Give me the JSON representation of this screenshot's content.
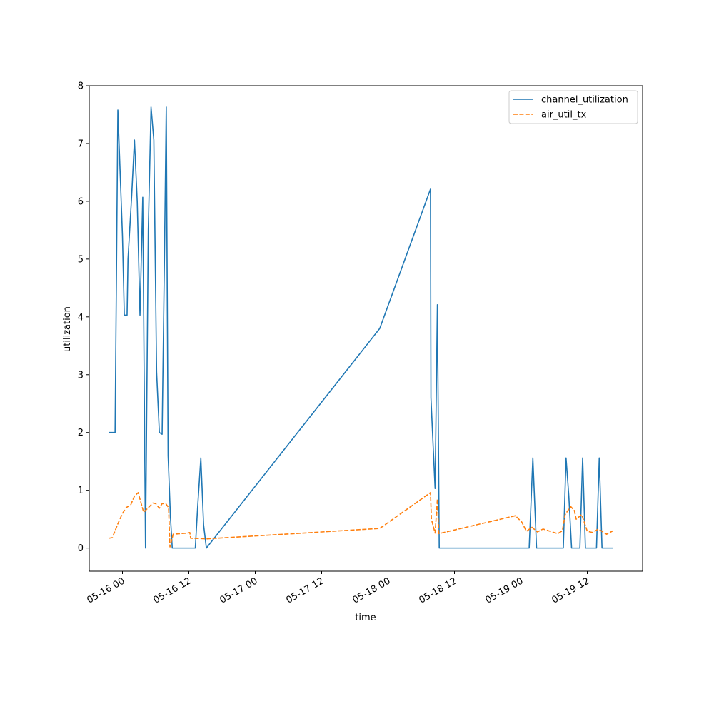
{
  "chart_data": {
    "type": "line",
    "title": "",
    "xlabel": "time",
    "ylabel": "utilization",
    "xlim": [
      "2025-05-15 18:00",
      "2025-05-19 22:00"
    ],
    "ylim": [
      -0.4,
      8
    ],
    "x_ticks": [
      {
        "x": "2025-05-16 00:00",
        "label": "05-16 00"
      },
      {
        "x": "2025-05-16 12:00",
        "label": "05-16 12"
      },
      {
        "x": "2025-05-17 00:00",
        "label": "05-17 00"
      },
      {
        "x": "2025-05-17 12:00",
        "label": "05-17 12"
      },
      {
        "x": "2025-05-18 00:00",
        "label": "05-18 00"
      },
      {
        "x": "2025-05-18 12:00",
        "label": "05-18 12"
      },
      {
        "x": "2025-05-19 00:00",
        "label": "05-19 00"
      },
      {
        "x": "2025-05-19 12:00",
        "label": "05-19 12"
      }
    ],
    "y_ticks": [
      0,
      1,
      2,
      3,
      4,
      5,
      6,
      7,
      8
    ],
    "grid": false,
    "legend_position": "top-right",
    "series": [
      {
        "name": "channel_utilization",
        "color": "#1f77b4",
        "style": "solid",
        "points": [
          [
            "2025-05-15 21:30",
            2.0
          ],
          [
            "2025-05-15 22:40",
            2.0
          ],
          [
            "2025-05-15 23:10",
            7.58
          ],
          [
            "2025-05-16 00:00",
            5.4
          ],
          [
            "2025-05-16 00:20",
            4.03
          ],
          [
            "2025-05-16 00:50",
            4.03
          ],
          [
            "2025-05-16 01:00",
            5.0
          ],
          [
            "2025-05-16 01:40",
            6.1
          ],
          [
            "2025-05-16 02:10",
            7.06
          ],
          [
            "2025-05-16 02:40",
            6.0
          ],
          [
            "2025-05-16 03:10",
            4.03
          ],
          [
            "2025-05-16 03:40",
            6.07
          ],
          [
            "2025-05-16 04:10",
            0.0
          ],
          [
            "2025-05-16 04:40",
            5.5
          ],
          [
            "2025-05-16 05:10",
            7.63
          ],
          [
            "2025-05-16 05:40",
            7.06
          ],
          [
            "2025-05-16 06:10",
            3.05
          ],
          [
            "2025-05-16 06:40",
            2.0
          ],
          [
            "2025-05-16 07:10",
            1.97
          ],
          [
            "2025-05-16 07:35",
            5.0
          ],
          [
            "2025-05-16 07:55",
            7.63
          ],
          [
            "2025-05-16 08:15",
            1.6
          ],
          [
            "2025-05-16 08:40",
            0.55
          ],
          [
            "2025-05-16 09:00",
            0.0
          ],
          [
            "2025-05-16 13:10",
            0.0
          ],
          [
            "2025-05-16 13:35",
            0.7
          ],
          [
            "2025-05-16 14:10",
            1.56
          ],
          [
            "2025-05-16 14:40",
            0.4
          ],
          [
            "2025-05-16 15:10",
            0.0
          ],
          [
            "2025-05-17 22:30",
            3.8
          ],
          [
            "2025-05-18 07:40",
            6.21
          ],
          [
            "2025-05-18 07:45",
            2.6
          ],
          [
            "2025-05-18 08:30",
            1.03
          ],
          [
            "2025-05-18 08:55",
            4.21
          ],
          [
            "2025-05-18 09:15",
            0.0
          ],
          [
            "2025-05-19 01:30",
            0.0
          ],
          [
            "2025-05-19 02:10",
            1.56
          ],
          [
            "2025-05-19 02:50",
            0.0
          ],
          [
            "2025-05-19 07:40",
            0.0
          ],
          [
            "2025-05-19 08:10",
            1.56
          ],
          [
            "2025-05-19 08:40",
            0.9
          ],
          [
            "2025-05-19 09:10",
            0.0
          ],
          [
            "2025-05-19 10:40",
            0.0
          ],
          [
            "2025-05-19 11:10",
            1.56
          ],
          [
            "2025-05-19 11:40",
            0.0
          ],
          [
            "2025-05-19 13:40",
            0.0
          ],
          [
            "2025-05-19 14:10",
            1.56
          ],
          [
            "2025-05-19 14:40",
            0.0
          ],
          [
            "2025-05-19 16:40",
            0.0
          ]
        ]
      },
      {
        "name": "air_util_tx",
        "color": "#ff7f0e",
        "style": "dashed",
        "points": [
          [
            "2025-05-15 21:30",
            0.17
          ],
          [
            "2025-05-15 22:10",
            0.18
          ],
          [
            "2025-05-15 23:10",
            0.42
          ],
          [
            "2025-05-16 00:00",
            0.6
          ],
          [
            "2025-05-16 00:40",
            0.7
          ],
          [
            "2025-05-16 01:30",
            0.75
          ],
          [
            "2025-05-16 02:10",
            0.9
          ],
          [
            "2025-05-16 02:50",
            0.96
          ],
          [
            "2025-05-16 03:20",
            0.79
          ],
          [
            "2025-05-16 03:50",
            0.62
          ],
          [
            "2025-05-16 04:40",
            0.7
          ],
          [
            "2025-05-16 05:30",
            0.78
          ],
          [
            "2025-05-16 06:00",
            0.77
          ],
          [
            "2025-05-16 06:40",
            0.69
          ],
          [
            "2025-05-16 07:10",
            0.77
          ],
          [
            "2025-05-16 07:50",
            0.77
          ],
          [
            "2025-05-16 08:20",
            0.7
          ],
          [
            "2025-05-16 08:35",
            0.02
          ],
          [
            "2025-05-16 09:10",
            0.24
          ],
          [
            "2025-05-16 11:50",
            0.26
          ],
          [
            "2025-05-16 12:10",
            0.27
          ],
          [
            "2025-05-16 12:20",
            0.17
          ],
          [
            "2025-05-16 15:20",
            0.16
          ],
          [
            "2025-05-17 22:30",
            0.34
          ],
          [
            "2025-05-18 07:40",
            0.96
          ],
          [
            "2025-05-18 07:50",
            0.5
          ],
          [
            "2025-05-18 08:30",
            0.26
          ],
          [
            "2025-05-18 08:55",
            0.85
          ],
          [
            "2025-05-18 09:10",
            0.25
          ],
          [
            "2025-05-18 23:00",
            0.56
          ],
          [
            "2025-05-19 00:10",
            0.45
          ],
          [
            "2025-05-19 01:00",
            0.29
          ],
          [
            "2025-05-19 02:00",
            0.36
          ],
          [
            "2025-05-19 03:00",
            0.28
          ],
          [
            "2025-05-19 04:00",
            0.33
          ],
          [
            "2025-05-19 06:40",
            0.25
          ],
          [
            "2025-05-19 07:30",
            0.3
          ],
          [
            "2025-05-19 08:00",
            0.58
          ],
          [
            "2025-05-19 09:00",
            0.72
          ],
          [
            "2025-05-19 09:40",
            0.65
          ],
          [
            "2025-05-19 10:00",
            0.5
          ],
          [
            "2025-05-19 11:00",
            0.58
          ],
          [
            "2025-05-19 12:00",
            0.29
          ],
          [
            "2025-05-19 13:00",
            0.27
          ],
          [
            "2025-05-19 14:00",
            0.33
          ],
          [
            "2025-05-19 15:30",
            0.24
          ],
          [
            "2025-05-19 16:40",
            0.3
          ]
        ]
      }
    ]
  }
}
